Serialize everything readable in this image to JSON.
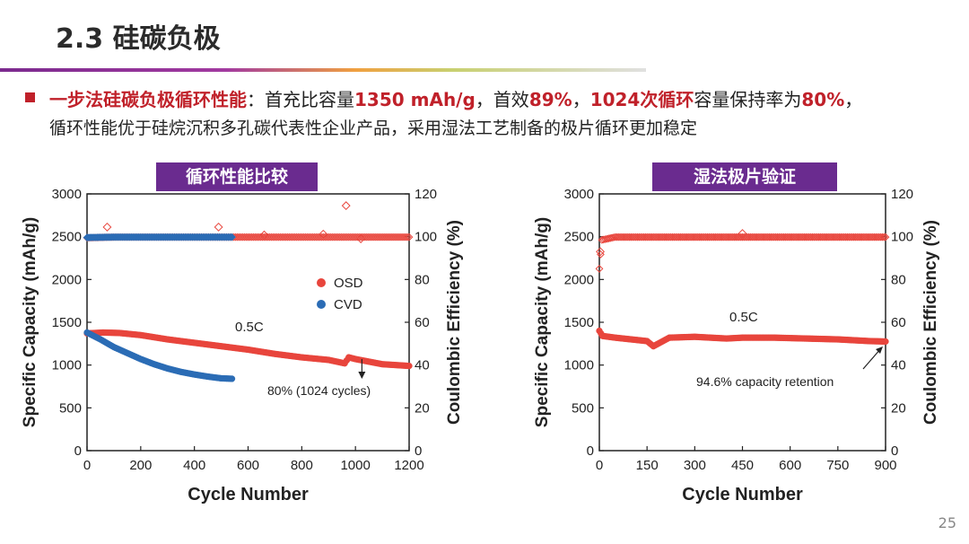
{
  "slide": {
    "title": "2.3 硅碳负极",
    "page_number": "25",
    "bullet": {
      "line1": [
        {
          "text": "一步法硅碳负极循环性能",
          "red": true
        },
        {
          "text": "：首充比容量",
          "red": false
        },
        {
          "text": "1350 mAh/g",
          "red": true
        },
        {
          "text": "，首效",
          "red": false
        },
        {
          "text": "89%",
          "red": true
        },
        {
          "text": "，",
          "red": false
        },
        {
          "text": "1024次循环",
          "red": true
        },
        {
          "text": "容量保持率为",
          "red": false
        },
        {
          "text": "80%",
          "red": true
        },
        {
          "text": "，",
          "red": false
        }
      ],
      "line2": "循环性能优于硅烷沉积多孔碳代表性企业产品，采用湿法工艺制备的极片循环更加稳定"
    }
  },
  "colors": {
    "osd": "#e8453c",
    "cvd": "#2b6cb5",
    "banner": "#6a2b8f",
    "accent": "#c0212a"
  },
  "chart_data": [
    {
      "type": "scatter",
      "title": "循环性能比较",
      "xlabel": "Cycle Number",
      "ylabel": "Specific Capacity (mAh/g)",
      "y2label": "Coulombic Efficiency (%)",
      "xlim": [
        0,
        1200
      ],
      "ylim": [
        0,
        3000
      ],
      "y2lim": [
        0,
        120
      ],
      "xticks": [
        0,
        200,
        400,
        600,
        800,
        1000,
        1200
      ],
      "yticks": [
        0,
        500,
        1000,
        1500,
        2000,
        2500,
        3000
      ],
      "y2ticks": [
        0,
        20,
        40,
        60,
        80,
        100,
        120
      ],
      "legend": [
        "OSD",
        "CVD"
      ],
      "annotations": [
        "0.5C",
        "80% (1024 cycles)"
      ],
      "series": [
        {
          "name": "OSD",
          "axis": "capacity",
          "points": [
            [
              0,
              1370
            ],
            [
              60,
              1380
            ],
            [
              120,
              1375
            ],
            [
              200,
              1350
            ],
            [
              300,
              1300
            ],
            [
              400,
              1260
            ],
            [
              500,
              1220
            ],
            [
              600,
              1180
            ],
            [
              700,
              1130
            ],
            [
              800,
              1090
            ],
            [
              900,
              1060
            ],
            [
              960,
              1020
            ],
            [
              975,
              1090
            ],
            [
              1000,
              1070
            ],
            [
              1100,
              1010
            ],
            [
              1200,
              990
            ]
          ]
        },
        {
          "name": "CVD",
          "axis": "capacity",
          "points": [
            [
              0,
              1380
            ],
            [
              50,
              1300
            ],
            [
              100,
              1210
            ],
            [
              150,
              1140
            ],
            [
              200,
              1070
            ],
            [
              250,
              1010
            ],
            [
              300,
              960
            ],
            [
              350,
              920
            ],
            [
              400,
              890
            ],
            [
              450,
              865
            ],
            [
              500,
              845
            ],
            [
              540,
              840
            ]
          ]
        },
        {
          "name": "OSD",
          "axis": "efficiency",
          "points": [
            [
              0,
              99.5
            ],
            [
              100,
              99.8
            ],
            [
              200,
              99.8
            ],
            [
              300,
              99.8
            ],
            [
              400,
              99.8
            ],
            [
              500,
              99.8
            ],
            [
              600,
              99.8
            ],
            [
              700,
              99.8
            ],
            [
              800,
              99.8
            ],
            [
              900,
              99.8
            ],
            [
              1000,
              99.8
            ],
            [
              1100,
              99.8
            ],
            [
              1200,
              99.8
            ]
          ],
          "outliers": [
            [
              75,
              104.5
            ],
            [
              490,
              104.5
            ],
            [
              660,
              100.8
            ],
            [
              880,
              101.2
            ],
            [
              965,
              114.5
            ],
            [
              1020,
              99.0
            ]
          ]
        },
        {
          "name": "CVD",
          "axis": "efficiency",
          "points": [
            [
              0,
              99.6
            ],
            [
              100,
              99.8
            ],
            [
              200,
              99.8
            ],
            [
              300,
              99.8
            ],
            [
              400,
              99.8
            ],
            [
              500,
              99.8
            ],
            [
              540,
              99.8
            ]
          ]
        }
      ]
    },
    {
      "type": "scatter",
      "title": "湿法极片验证",
      "xlabel": "Cycle Number",
      "ylabel": "Specific Capacity (mAh/g)",
      "y2label": "Coulombic Efficiency (%)",
      "xlim": [
        0,
        900
      ],
      "ylim": [
        0,
        3000
      ],
      "y2lim": [
        0,
        120
      ],
      "xticks": [
        0,
        150,
        300,
        450,
        600,
        750,
        900
      ],
      "yticks": [
        0,
        500,
        1000,
        1500,
        2000,
        2500,
        3000
      ],
      "y2ticks": [
        0,
        20,
        40,
        60,
        80,
        100,
        120
      ],
      "annotations": [
        "0.5C",
        "94.6% capacity retention"
      ],
      "series": [
        {
          "name": "OSD",
          "axis": "capacity",
          "points": [
            [
              0,
              1400
            ],
            [
              10,
              1340
            ],
            [
              50,
              1320
            ],
            [
              100,
              1300
            ],
            [
              150,
              1280
            ],
            [
              170,
              1220
            ],
            [
              190,
              1260
            ],
            [
              220,
              1320
            ],
            [
              300,
              1330
            ],
            [
              400,
              1310
            ],
            [
              450,
              1320
            ],
            [
              550,
              1320
            ],
            [
              650,
              1310
            ],
            [
              750,
              1300
            ],
            [
              850,
              1280
            ],
            [
              900,
              1275
            ]
          ]
        },
        {
          "name": "OSD",
          "axis": "efficiency",
          "points": [
            [
              0,
              85
            ],
            [
              8,
              98.5
            ],
            [
              50,
              99.8
            ],
            [
              150,
              99.8
            ],
            [
              300,
              99.8
            ],
            [
              450,
              99.8
            ],
            [
              600,
              99.8
            ],
            [
              750,
              99.8
            ],
            [
              900,
              99.8
            ]
          ],
          "outliers": [
            [
              3,
              93
            ],
            [
              450,
              101.5
            ]
          ]
        }
      ]
    }
  ]
}
